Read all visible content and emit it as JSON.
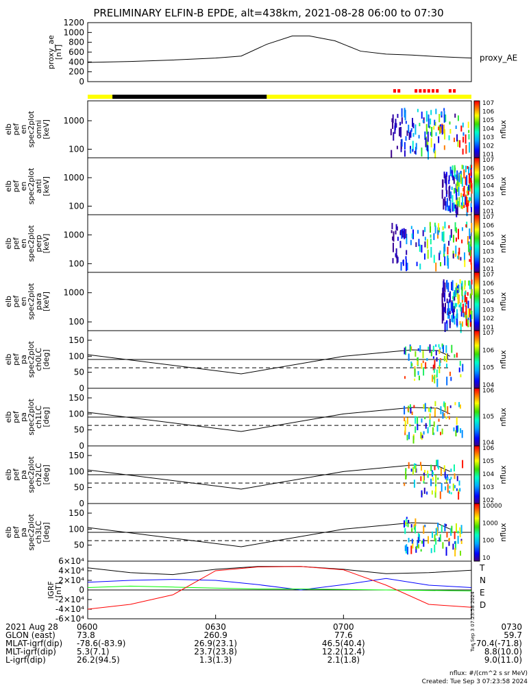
{
  "title": "PRELIMINARY ELFIN-B EPDE, alt=438km, 2021-08-28 06:00 to 07:30",
  "created": "Created: Tue Sep  3 07:23:58 2024",
  "footnote_units": "nflux: #/(cm^2 s sr MeV)",
  "side_stamp": "Tue Sep  3 07:23:58 2024",
  "colors": {
    "sunlight": "#ffff00",
    "eclipse": "#000000",
    "sci_marker": "#ff0000",
    "T": "#000000",
    "N": "#0000ff",
    "E": "#00ff00",
    "D": "#ff0000"
  },
  "chart_data": [
    {
      "type": "line",
      "panel": "proxy_ae",
      "ylabel": [
        "proxy_ae",
        "[nT]"
      ],
      "legend": [
        "proxy_AE"
      ],
      "ylim": [
        0,
        1200
      ],
      "yticks": [
        "0",
        "200",
        "400",
        "600",
        "800",
        "1000",
        "1200"
      ],
      "x": [
        0,
        10,
        20,
        30,
        36,
        42,
        48,
        52,
        58,
        64,
        70,
        76,
        82,
        90
      ],
      "values": [
        390,
        410,
        440,
        480,
        520,
        760,
        930,
        930,
        830,
        620,
        560,
        540,
        510,
        480
      ]
    },
    {
      "type": "timeline",
      "panel": "state_bar",
      "segments": [
        {
          "state": "sunlight",
          "from": 0,
          "to": 5.8
        },
        {
          "state": "eclipse",
          "from": 5.8,
          "to": 42
        },
        {
          "state": "sunlight",
          "from": 42,
          "to": 90
        }
      ],
      "science_zones_minutes": [
        72,
        73,
        77,
        78,
        79,
        80,
        81,
        82,
        85,
        86
      ]
    },
    {
      "type": "heatmap",
      "panel": "omni",
      "ylabel": [
        "elb",
        "pef",
        "en",
        "spec2plot",
        "omni",
        "[keV]"
      ],
      "yscale": "log",
      "ylim": [
        50,
        5000
      ],
      "yticks": [
        "100",
        "1000"
      ],
      "colorbar": {
        "label": "nflux",
        "ticks": [
          "101",
          "102",
          "103",
          "104",
          "105",
          "106",
          "107"
        ]
      },
      "active_window_minutes": [
        71,
        90
      ]
    },
    {
      "type": "heatmap",
      "panel": "anti",
      "ylabel": [
        "elb",
        "pef",
        "en",
        "spec2plot",
        "anti",
        "[keV]"
      ],
      "yscale": "log",
      "ylim": [
        50,
        5000
      ],
      "yticks": [
        "100",
        "1000"
      ],
      "colorbar": {
        "label": "nflux",
        "ticks": [
          "101",
          "102",
          "103",
          "104",
          "105",
          "106",
          "107"
        ]
      },
      "active_window_minutes": [
        83,
        90
      ]
    },
    {
      "type": "heatmap",
      "panel": "perp",
      "ylabel": [
        "elb",
        "pef",
        "en",
        "spec2plot",
        "perp",
        "[keV]"
      ],
      "yscale": "log",
      "ylim": [
        50,
        5000
      ],
      "yticks": [
        "100",
        "1000"
      ],
      "colorbar": {
        "label": "nflux",
        "ticks": [
          "101",
          "102",
          "103",
          "104",
          "105",
          "106",
          "107"
        ]
      },
      "active_window_minutes": [
        71,
        90
      ]
    },
    {
      "type": "heatmap",
      "panel": "para",
      "ylabel": [
        "elb",
        "pef",
        "en",
        "spec2plot",
        "para",
        "[keV]"
      ],
      "yscale": "log",
      "ylim": [
        50,
        5000
      ],
      "yticks": [
        "100",
        "1000"
      ],
      "colorbar": {
        "label": "nflux",
        "ticks": [
          "101",
          "102",
          "103",
          "104",
          "105",
          "106",
          "107"
        ]
      },
      "active_window_minutes": [
        83,
        90
      ]
    },
    {
      "type": "heatmap",
      "panel": "ch0LC",
      "ylabel": [
        "elb",
        "pef",
        "pa",
        "spec2plot",
        "ch0LC",
        "[deg]"
      ],
      "ylim": [
        0,
        180
      ],
      "yticks": [
        "0",
        "50",
        "100",
        "150"
      ],
      "colorbar": {
        "label": "nflux",
        "ticks": [
          "104",
          "105",
          "106",
          "107"
        ]
      },
      "hline": 90,
      "x": [
        0,
        36,
        60,
        76,
        82,
        85
      ],
      "solid": [
        105,
        45,
        100,
        120,
        118,
        100
      ],
      "dashed": [
        64,
        64,
        64,
        64,
        64,
        64
      ]
    },
    {
      "type": "heatmap",
      "panel": "ch1LC",
      "ylabel": [
        "elb",
        "pef",
        "pa",
        "spec2plot",
        "ch1LC",
        "[deg]"
      ],
      "ylim": [
        0,
        180
      ],
      "yticks": [
        "0",
        "50",
        "100",
        "150"
      ],
      "colorbar": {
        "label": "nflux",
        "ticks": [
          "104",
          "105",
          "106"
        ]
      },
      "hline": 90,
      "x": [
        0,
        36,
        60,
        76,
        82,
        85
      ],
      "solid": [
        105,
        45,
        100,
        120,
        118,
        100
      ],
      "dashed": [
        64,
        64,
        64,
        64,
        64,
        64
      ]
    },
    {
      "type": "heatmap",
      "panel": "ch2LC",
      "ylabel": [
        "elb",
        "pef",
        "pa",
        "spec2plot",
        "ch2LC",
        "[deg]"
      ],
      "ylim": [
        0,
        180
      ],
      "yticks": [
        "0",
        "50",
        "100",
        "150"
      ],
      "colorbar": {
        "label": "nflux",
        "ticks": [
          "102",
          "103",
          "104",
          "105",
          "106"
        ]
      },
      "hline": 90,
      "x": [
        0,
        36,
        60,
        76,
        82,
        85
      ],
      "solid": [
        105,
        45,
        100,
        120,
        118,
        100
      ],
      "dashed": [
        64,
        64,
        64,
        64,
        64,
        64
      ]
    },
    {
      "type": "heatmap",
      "panel": "ch3LC",
      "ylabel": [
        "elb",
        "pef",
        "pa",
        "spec2plot",
        "ch3LC",
        "[deg]"
      ],
      "ylim": [
        0,
        180
      ],
      "yticks": [
        "50",
        "100",
        "150"
      ],
      "colorbar": {
        "label": "nflux",
        "ticks": [
          "10",
          "100",
          "1000",
          "10000"
        ]
      },
      "hline": 90,
      "x": [
        0,
        36,
        60,
        76,
        82,
        85
      ],
      "solid": [
        105,
        45,
        100,
        120,
        118,
        100
      ],
      "dashed": [
        64,
        64,
        64,
        64,
        64,
        64
      ]
    },
    {
      "type": "line",
      "panel": "IGRF",
      "ylabel": [
        "IGRF",
        "[nT]"
      ],
      "ylim": [
        -60000,
        60000
      ],
      "yticks": [
        "-6×10⁴",
        "-4×10⁴",
        "-2×10⁴",
        "0",
        "2×10⁴",
        "4×10⁴",
        "6×10⁴"
      ],
      "x": [
        0,
        10,
        20,
        30,
        40,
        50,
        60,
        70,
        80,
        90
      ],
      "series": [
        {
          "name": "T",
          "values": [
            46000,
            36000,
            32000,
            43000,
            49000,
            49000,
            43000,
            34000,
            36000,
            41000
          ]
        },
        {
          "name": "N",
          "values": [
            16000,
            20000,
            22000,
            20000,
            11000,
            0,
            11000,
            24000,
            10000,
            5000
          ]
        },
        {
          "name": "E",
          "values": [
            5000,
            8000,
            6000,
            4000,
            2000,
            2000,
            1000,
            0,
            -1000,
            -2000
          ]
        },
        {
          "name": "D",
          "values": [
            -40000,
            -30000,
            -10000,
            40000,
            48000,
            49000,
            42000,
            10000,
            -30000,
            -36000
          ]
        }
      ]
    }
  ],
  "ephemeris": {
    "rows": [
      {
        "label": "2021 Aug 28",
        "values": [
          "0600",
          "0630",
          "0700",
          "0730"
        ]
      },
      {
        "label": "GLON (east)",
        "values": [
          "73.8",
          "260.9",
          "77.6",
          "59.7"
        ]
      },
      {
        "label": "MLAT-igrf(dip)",
        "values": [
          "-78.6(-83.9)",
          "26.9(23.1)",
          "46.5(40.4)",
          "-70.4(-71.8)"
        ]
      },
      {
        "label": "MLT-igrf(dip)",
        "values": [
          "5.3(7.1)",
          "23.7(23.8)",
          "12.2(12.4)",
          "8.8(10.0)"
        ]
      },
      {
        "label": "L-igrf(dip)",
        "values": [
          "26.2(94.5)",
          "1.3(1.3)",
          "2.1(1.8)",
          "9.0(11.0)"
        ]
      }
    ]
  }
}
